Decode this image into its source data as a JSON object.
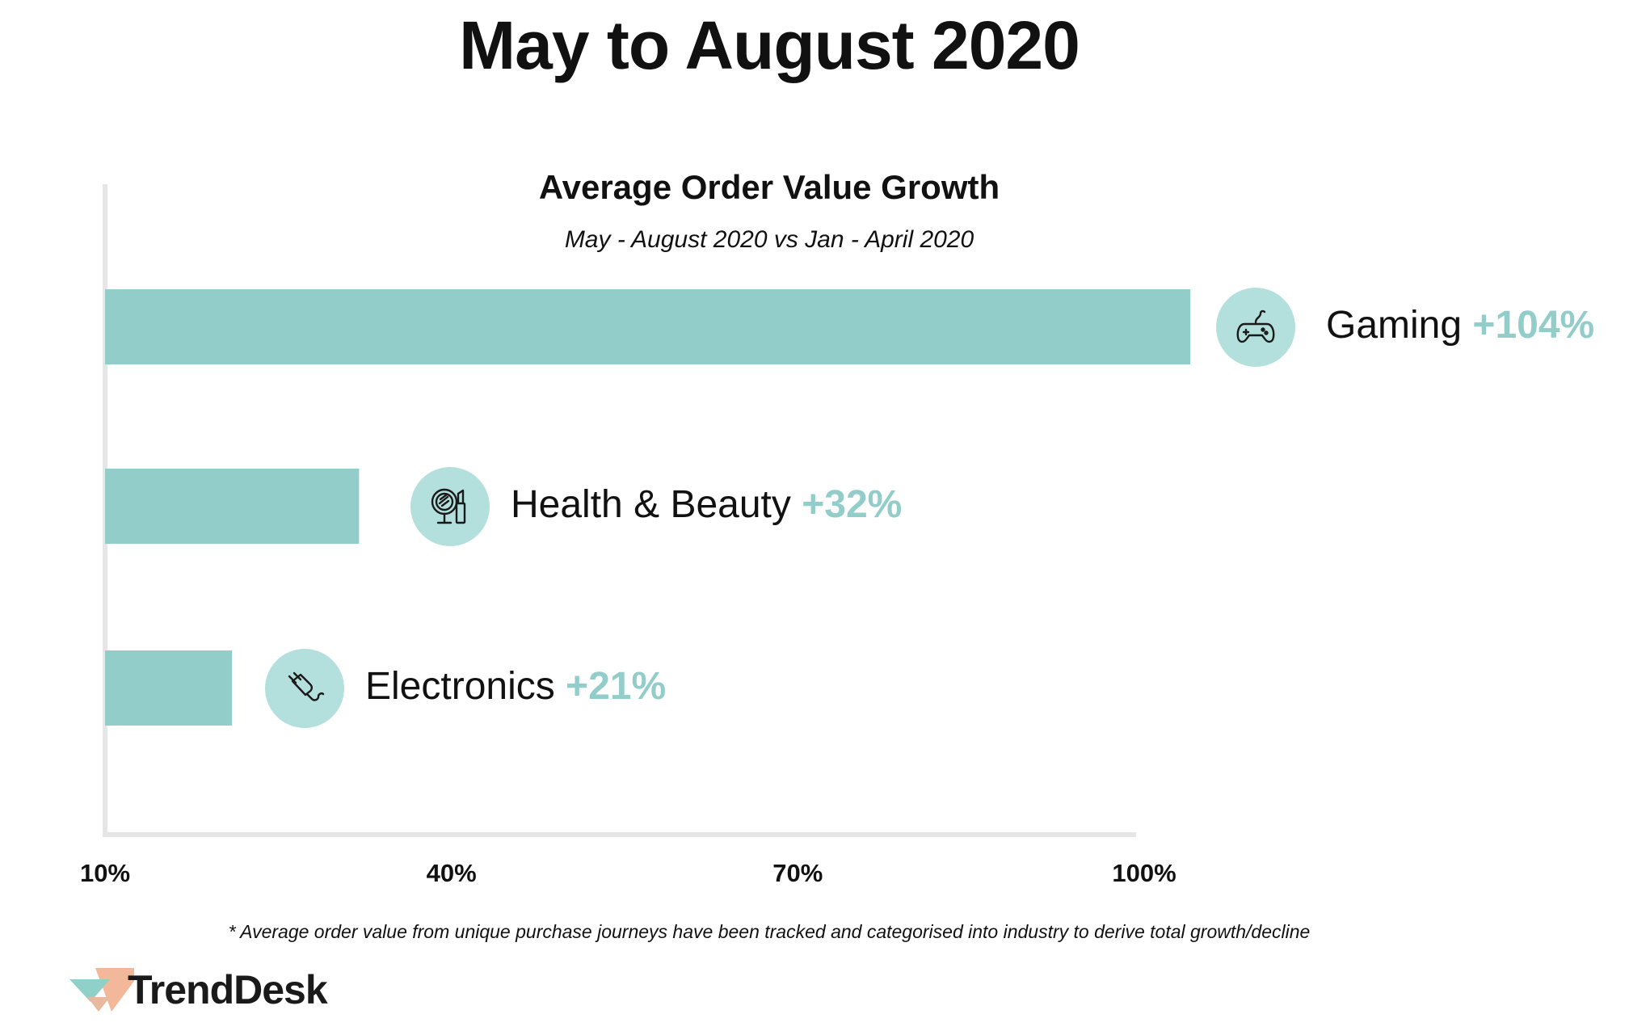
{
  "page": {
    "title": "May to August 2020",
    "footnote": "* Average order value from unique purchase journeys have been tracked and categorised into industry to derive total growth/decline",
    "brand": "TrendDesk"
  },
  "colors": {
    "bar": "#93cdc9",
    "icon_bg": "#b3e0dc",
    "axis": "#e6e6e6",
    "value_text": "#93cdc9",
    "logo_orange": "#f2b899",
    "logo_teal": "#8fd0c8"
  },
  "chart_data": {
    "type": "bar",
    "orientation": "horizontal",
    "title": "Average Order Value Growth",
    "subtitle": "May - August 2020 vs Jan - April 2020",
    "categories": [
      "Gaming",
      "Health & Beauty",
      "Electronics"
    ],
    "values": [
      104,
      32,
      21
    ],
    "value_labels": [
      "+104%",
      "+32%",
      "+21%"
    ],
    "icons": [
      "gamepad-icon",
      "makeup-mirror-icon",
      "plug-icon"
    ],
    "xlim": [
      10,
      100
    ],
    "ticks": [
      10,
      40,
      70,
      100
    ],
    "tick_labels": [
      "10%",
      "40%",
      "70%",
      "100%"
    ],
    "grid": false,
    "legend": "none"
  }
}
